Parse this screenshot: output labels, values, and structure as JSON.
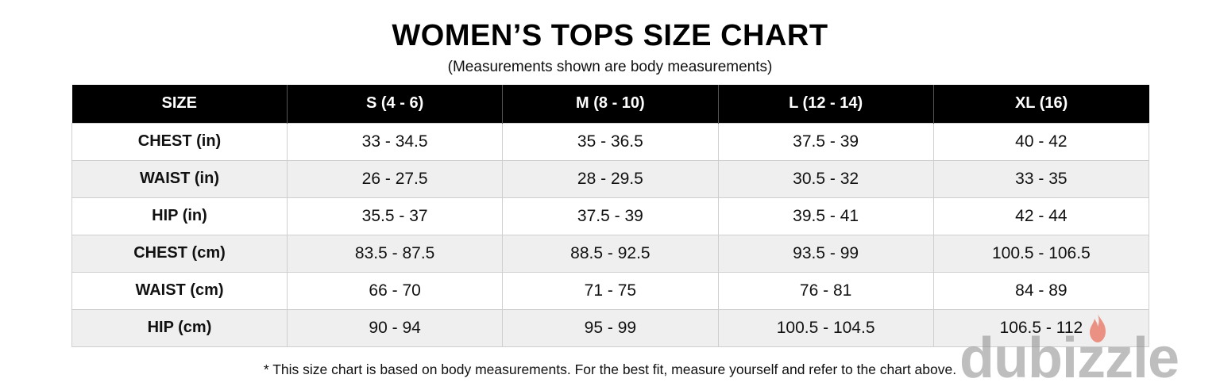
{
  "title": "WOMEN’S TOPS SIZE CHART",
  "subtitle": "(Measurements shown are body measurements)",
  "table": {
    "headers": [
      "SIZE",
      "S (4 - 6)",
      "M (8 - 10)",
      "L (12 - 14)",
      "XL (16)"
    ],
    "rows": [
      [
        "CHEST (in)",
        "33 - 34.5",
        "35 - 36.5",
        "37.5 - 39",
        "40 - 42"
      ],
      [
        "WAIST (in)",
        "26 - 27.5",
        "28 - 29.5",
        "30.5 - 32",
        "33 - 35"
      ],
      [
        "HIP (in)",
        "35.5 - 37",
        "37.5 - 39",
        "39.5 - 41",
        "42 - 44"
      ],
      [
        "CHEST (cm)",
        "83.5 - 87.5",
        "88.5 - 92.5",
        "93.5 - 99",
        "100.5 - 106.5"
      ],
      [
        "WAIST (cm)",
        "66 - 70",
        "71 - 75",
        "76 - 81",
        "84 - 89"
      ],
      [
        "HIP (cm)",
        "90 - 94",
        "95 - 99",
        "100.5 - 104.5",
        "106.5 - 112"
      ]
    ]
  },
  "footnote": "* This size chart is based on body measurements. For the best fit, measure yourself and refer to the chart above.",
  "watermark": {
    "text": "dubizzle",
    "icon": "flame-icon",
    "color": "#8a8a8a",
    "accent": "#e8452c"
  }
}
